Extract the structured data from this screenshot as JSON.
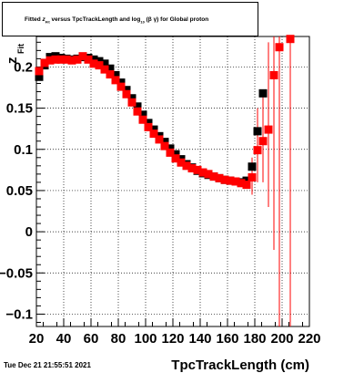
{
  "title_box": {
    "prefix": "Fitted",
    "z_symbol": "z",
    "z_sub": "Fit",
    "middle": "versus TpcTrackLength and log",
    "log_sub": "10",
    "log_arg": "(β γ)",
    "suffix": "for Global proton"
  },
  "timestamp": "Tue Dec 21 21:55:51 2021",
  "colors": {
    "black_series": "#000000",
    "red_series": "#ff0000",
    "grid": "#000000"
  },
  "chart_data": {
    "type": "scatter",
    "title": "Fitted zFit versus TpcTrackLength and log10(βγ) for Global proton",
    "xlabel": "TpcTrackLength (cm)",
    "ylabel": "z",
    "ylabel_sub": "Fit",
    "xlim": [
      20,
      220
    ],
    "ylim": [
      -0.115,
      0.237
    ],
    "xticks": [
      20,
      40,
      60,
      80,
      100,
      120,
      140,
      160,
      180,
      200,
      220
    ],
    "yticks": [
      -0.1,
      -0.05,
      0,
      0.05,
      0.1,
      0.15,
      0.2
    ],
    "ytick_labels": [
      "−0.1",
      "−0.05",
      "0",
      "0.05",
      "0.1",
      "0.15",
      "0.2"
    ],
    "grid": true,
    "series": [
      {
        "color": "#000000",
        "points": [
          [
            22,
            0.188
          ],
          [
            26,
            0.202
          ],
          [
            30,
            0.212
          ],
          [
            34,
            0.213
          ],
          [
            38,
            0.211
          ],
          [
            42,
            0.21
          ],
          [
            46,
            0.209
          ],
          [
            50,
            0.21
          ],
          [
            54,
            0.212
          ],
          [
            58,
            0.211
          ],
          [
            62,
            0.209
          ],
          [
            66,
            0.207
          ],
          [
            70,
            0.204
          ],
          [
            74,
            0.198
          ],
          [
            78,
            0.19
          ],
          [
            82,
            0.181
          ],
          [
            86,
            0.172
          ],
          [
            90,
            0.162
          ],
          [
            94,
            0.152
          ],
          [
            98,
            0.142
          ],
          [
            102,
            0.132
          ],
          [
            106,
            0.124
          ],
          [
            110,
            0.116
          ],
          [
            114,
            0.109
          ],
          [
            118,
            0.101
          ],
          [
            122,
            0.094
          ],
          [
            126,
            0.088
          ],
          [
            130,
            0.082
          ],
          [
            134,
            0.078
          ],
          [
            138,
            0.074
          ],
          [
            142,
            0.071
          ],
          [
            146,
            0.069
          ],
          [
            150,
            0.067
          ],
          [
            154,
            0.065
          ],
          [
            158,
            0.063
          ],
          [
            162,
            0.062
          ],
          [
            166,
            0.061
          ],
          [
            170,
            0.06
          ],
          [
            174,
            0.062
          ],
          [
            178,
            0.079
          ],
          [
            182,
            0.122
          ],
          [
            186,
            0.168
          ]
        ],
        "errors": []
      },
      {
        "color": "#ff0000",
        "points": [
          [
            22,
            0.195
          ],
          [
            26,
            0.205
          ],
          [
            30,
            0.208
          ],
          [
            34,
            0.209
          ],
          [
            38,
            0.209
          ],
          [
            42,
            0.209
          ],
          [
            46,
            0.208
          ],
          [
            50,
            0.209
          ],
          [
            54,
            0.213
          ],
          [
            58,
            0.209
          ],
          [
            62,
            0.204
          ],
          [
            66,
            0.202
          ],
          [
            70,
            0.197
          ],
          [
            74,
            0.191
          ],
          [
            78,
            0.184
          ],
          [
            82,
            0.176
          ],
          [
            86,
            0.167
          ],
          [
            90,
            0.157
          ],
          [
            94,
            0.146
          ],
          [
            98,
            0.136
          ],
          [
            102,
            0.127
          ],
          [
            106,
            0.119
          ],
          [
            110,
            0.112
          ],
          [
            114,
            0.104
          ],
          [
            118,
            0.096
          ],
          [
            122,
            0.089
          ],
          [
            126,
            0.084
          ],
          [
            130,
            0.08
          ],
          [
            134,
            0.077
          ],
          [
            138,
            0.075
          ],
          [
            142,
            0.072
          ],
          [
            146,
            0.07
          ],
          [
            150,
            0.067
          ],
          [
            154,
            0.065
          ],
          [
            158,
            0.063
          ],
          [
            162,
            0.062
          ],
          [
            166,
            0.061
          ],
          [
            170,
            0.059
          ],
          [
            174,
            0.057
          ],
          [
            178,
            0.066
          ],
          [
            182,
            0.099
          ],
          [
            186,
            0.11
          ],
          [
            190,
            0.124
          ],
          [
            194,
            0.19
          ],
          [
            198,
            0.224
          ],
          [
            206,
            0.234
          ]
        ],
        "errors": [
          [
            178,
            0.045,
            0.09
          ],
          [
            182,
            0.06,
            0.15
          ],
          [
            186,
            0.06,
            0.165
          ],
          [
            190,
            0.03,
            0.23
          ],
          [
            194,
            -0.022,
            0.237
          ],
          [
            198,
            -0.115,
            0.237
          ],
          [
            206,
            -0.115,
            0.237
          ]
        ]
      }
    ]
  }
}
